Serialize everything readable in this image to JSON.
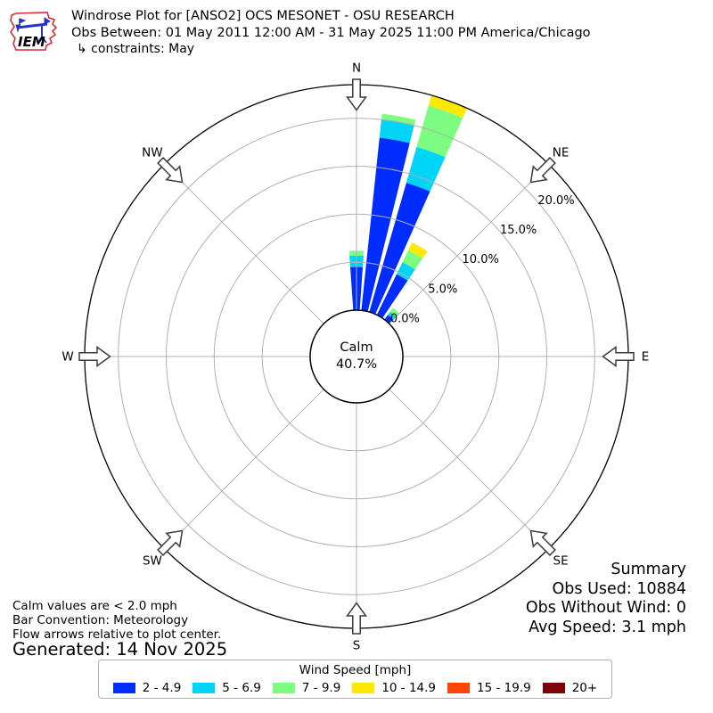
{
  "header": {
    "title": "Windrose Plot for [ANSO2] OCS MESONET - OSU RESEARCH",
    "subtitle": "Obs Between: 01 May 2011 12:00 AM - 31 May 2025 11:00 PM America/Chicago",
    "constraints": "↳ constraints: May"
  },
  "logo": {
    "text": "IEM"
  },
  "chart_data": {
    "type": "windrose",
    "units": "mph",
    "legend_title": "Wind Speed [mph]",
    "speed_bins": [
      {
        "label": "2 - 4.9",
        "color": "#012cff"
      },
      {
        "label": "5 - 6.9",
        "color": "#00d5f7"
      },
      {
        "label": "7 - 9.9",
        "color": "#7cfd7f"
      },
      {
        "label": "10 - 14.9",
        "color": "#fde801"
      },
      {
        "label": "15 - 19.9",
        "color": "#ff4503"
      },
      {
        "label": "20+",
        "color": "#7e0308"
      }
    ],
    "bar_width_deg": 8,
    "bars": [
      {
        "azimuth_deg": 0,
        "segments_pct": [
          4.5,
          1.2,
          0.5,
          0,
          0,
          0
        ]
      },
      {
        "azimuth_deg": 10,
        "segments_pct": [
          18.1,
          1.9,
          0.6,
          0,
          0,
          0
        ]
      },
      {
        "azimuth_deg": 20,
        "segments_pct": [
          14.0,
          3.9,
          4.5,
          1.1,
          0,
          0
        ]
      },
      {
        "azimuth_deg": 30,
        "segments_pct": [
          4.7,
          1.4,
          1.4,
          0.9,
          0,
          0
        ]
      },
      {
        "azimuth_deg": 41,
        "segments_pct": [
          0.6,
          0.4,
          0.5,
          0,
          0,
          0
        ]
      }
    ],
    "ring_ticks_pct": [
      0,
      5,
      10,
      15,
      20
    ],
    "ring_tick_labels": [
      "0.0%",
      "5.0%",
      "10.0%",
      "15.0%",
      "20.0%"
    ],
    "rmax_pct": 23.5,
    "calm": {
      "label": "Calm",
      "value": "40.7%"
    },
    "compass": [
      "N",
      "NE",
      "E",
      "SE",
      "S",
      "SW",
      "W",
      "NW"
    ],
    "grid_color": "#b0b0b0",
    "outline_color": "#000000",
    "arrow_outline_color": "#3c3c3c"
  },
  "notes": {
    "calm": "Calm values are < 2.0 mph",
    "convention": "Bar Convention: Meteorology",
    "flow": "Flow arrows relative to plot center.",
    "generated": "Generated: 14 Nov 2025"
  },
  "summary": {
    "title": "Summary",
    "obs_used": "Obs Used: 10884",
    "obs_without_wind": "Obs Without Wind: 0",
    "avg_speed": "Avg Speed: 3.1 mph"
  }
}
